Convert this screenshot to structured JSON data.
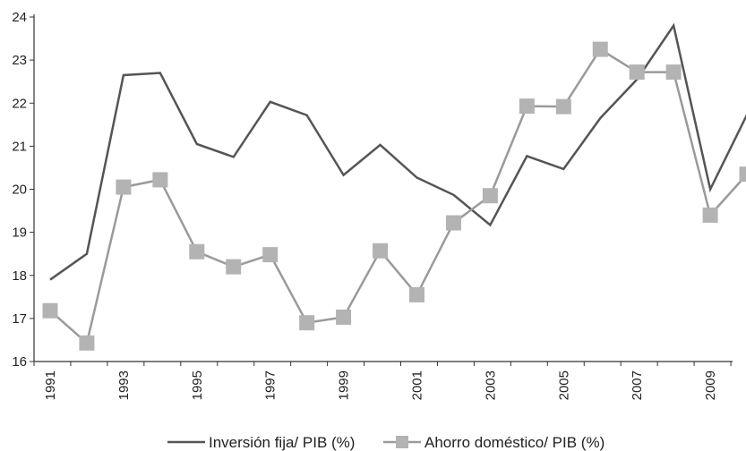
{
  "chart_data": {
    "type": "line",
    "x": [
      1991,
      1992,
      1993,
      1994,
      1995,
      1996,
      1997,
      1998,
      1999,
      2000,
      2001,
      2002,
      2003,
      2004,
      2005,
      2006,
      2007,
      2008,
      2009,
      2010
    ],
    "x_tick_labels": [
      "1991",
      "1993",
      "1995",
      "1997",
      "1999",
      "2001",
      "2003",
      "2005",
      "2007",
      "2009"
    ],
    "y_ticks": [
      16,
      17,
      18,
      19,
      20,
      21,
      22,
      23,
      24
    ],
    "ylim": [
      16,
      24
    ],
    "xlim": [
      1991,
      2010
    ],
    "grid": false,
    "legend_position": "bottom",
    "series": [
      {
        "name": "Inversión fija/ PIB (%)",
        "color": "#555555",
        "marker": "none",
        "values": [
          17.9,
          18.5,
          22.65,
          22.7,
          21.05,
          20.75,
          22.03,
          21.72,
          20.33,
          21.03,
          20.27,
          19.87,
          19.17,
          20.77,
          20.47,
          21.65,
          22.55,
          23.8,
          20.0,
          21.73
        ]
      },
      {
        "name": "Ahorro doméstico/ PIB (%)",
        "color": "#9a9a9a",
        "marker_color": "#b3b3b3",
        "marker": "square",
        "values": [
          17.18,
          16.43,
          20.05,
          20.22,
          18.55,
          18.2,
          18.48,
          16.9,
          17.03,
          18.57,
          17.55,
          19.22,
          19.85,
          21.93,
          21.92,
          23.25,
          22.72,
          22.72,
          19.4,
          20.35
        ]
      }
    ]
  }
}
